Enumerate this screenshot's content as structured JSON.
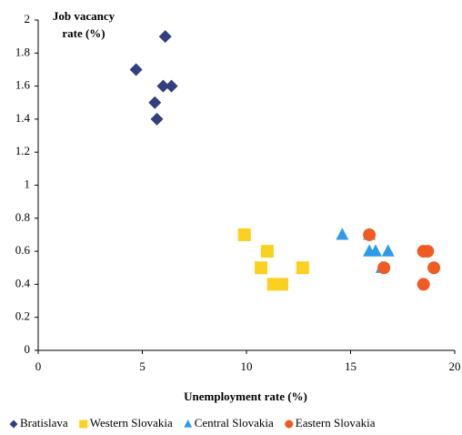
{
  "chart_data": {
    "type": "scatter",
    "xlabel": "Unemployment rate (%)",
    "ylabel": "Job vacancy rate (%)",
    "xlim": [
      0,
      20
    ],
    "xticks": [
      0,
      5,
      10,
      15,
      20
    ],
    "ylim": [
      0,
      2
    ],
    "yticks": [
      0,
      0.2,
      0.4,
      0.6,
      0.8,
      1,
      1.2,
      1.4,
      1.6,
      1.8,
      2
    ],
    "grid": false,
    "legend": "bottom",
    "series": [
      {
        "name": "Bratislava",
        "color": "#333f7e",
        "marker": "diamond",
        "x": [
          4.7,
          6.1,
          6.0,
          6.4,
          5.6,
          5.7
        ],
        "y": [
          1.7,
          1.9,
          1.6,
          1.6,
          1.5,
          1.4
        ]
      },
      {
        "name": "Western Slovakia",
        "color": "#fcd01f",
        "marker": "square",
        "x": [
          9.9,
          11.0,
          10.7,
          12.7,
          11.3,
          11.7
        ],
        "y": [
          0.7,
          0.6,
          0.5,
          0.5,
          0.4,
          0.4
        ]
      },
      {
        "name": "Central Slovakia",
        "color": "#2e9bea",
        "marker": "triangle",
        "x": [
          14.6,
          15.9,
          15.9,
          16.2,
          16.8,
          16.5
        ],
        "y": [
          0.7,
          0.7,
          0.6,
          0.6,
          0.6,
          0.5
        ]
      },
      {
        "name": "Eastern Slovakia",
        "color": "#ef5b23",
        "marker": "circle",
        "x": [
          15.9,
          18.5,
          18.7,
          16.6,
          19.0,
          18.5
        ],
        "y": [
          0.7,
          0.6,
          0.6,
          0.5,
          0.5,
          0.4
        ]
      }
    ]
  }
}
